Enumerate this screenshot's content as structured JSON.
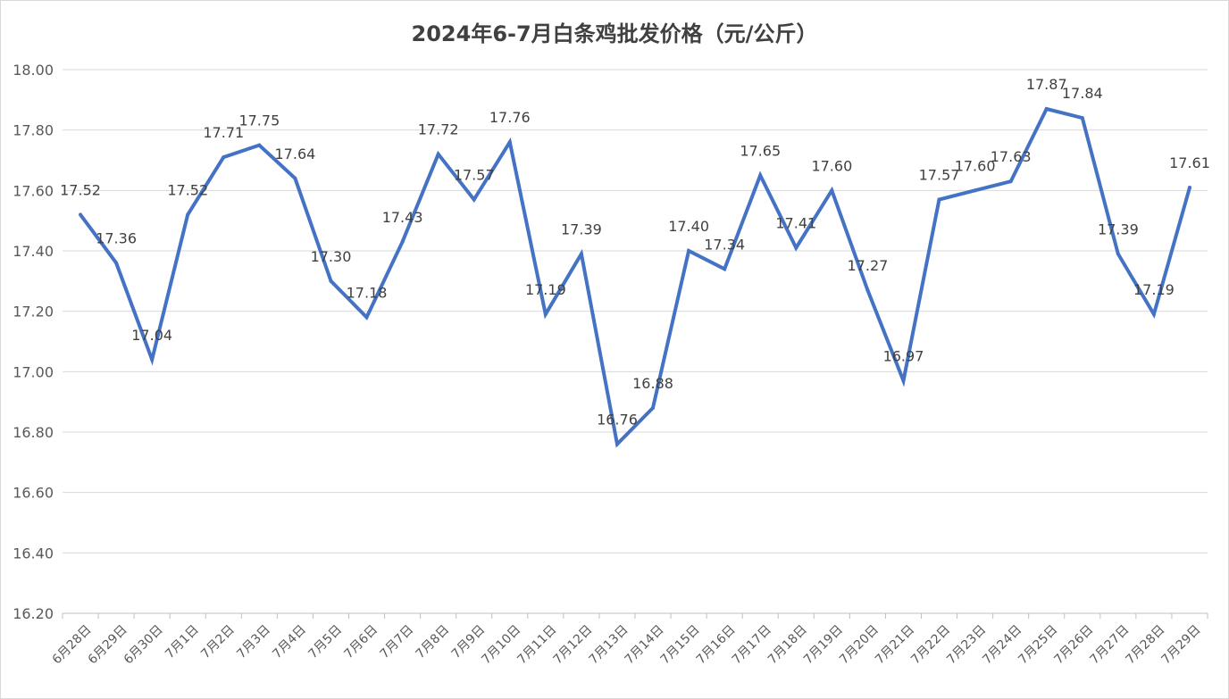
{
  "chart_data": {
    "type": "line",
    "title": "2024年6-7月白条鸡批发价格（元/公斤）",
    "xlabel": "",
    "ylabel": "",
    "ylim": [
      16.2,
      18.0
    ],
    "ytick_step": 0.2,
    "ytick_labels": [
      "16.20",
      "16.40",
      "16.60",
      "16.80",
      "17.00",
      "17.20",
      "17.40",
      "17.60",
      "17.80",
      "18.00"
    ],
    "grid": true,
    "legend": "none",
    "line_color": "#4472c4",
    "categories": [
      "6月28日",
      "6月29日",
      "6月30日",
      "7月1日",
      "7月2日",
      "7月3日",
      "7月4日",
      "7月5日",
      "7月6日",
      "7月7日",
      "7月8日",
      "7月9日",
      "7月10日",
      "7月11日",
      "7月12日",
      "7月13日",
      "7月14日",
      "7月15日",
      "7月16日",
      "7月17日",
      "7月18日",
      "7月19日",
      "7月20日",
      "7月21日",
      "7月22日",
      "7月23日",
      "7月24日",
      "7月25日",
      "7月26日",
      "7月27日",
      "7月28日",
      "7月29日"
    ],
    "values": [
      17.52,
      17.36,
      17.04,
      17.52,
      17.71,
      17.75,
      17.64,
      17.3,
      17.18,
      17.43,
      17.72,
      17.57,
      17.76,
      17.19,
      17.39,
      16.76,
      16.88,
      17.4,
      17.34,
      17.65,
      17.41,
      17.6,
      17.27,
      16.97,
      17.57,
      17.6,
      17.63,
      17.87,
      17.84,
      17.39,
      17.19,
      17.61
    ],
    "data_labels": [
      "17.52",
      "17.36",
      "17.04",
      "17.52",
      "17.71",
      "17.75",
      "17.64",
      "17.30",
      "17.18",
      "17.43",
      "17.72",
      "17.57",
      "17.76",
      "17.19",
      "17.39",
      "16.76",
      "16.88",
      "17.40",
      "17.34",
      "17.65",
      "17.41",
      "17.60",
      "17.27",
      "16.97",
      "17.57",
      "17.60",
      "17.63",
      "17.87",
      "17.84",
      "17.39",
      "17.19",
      "17.61"
    ]
  }
}
